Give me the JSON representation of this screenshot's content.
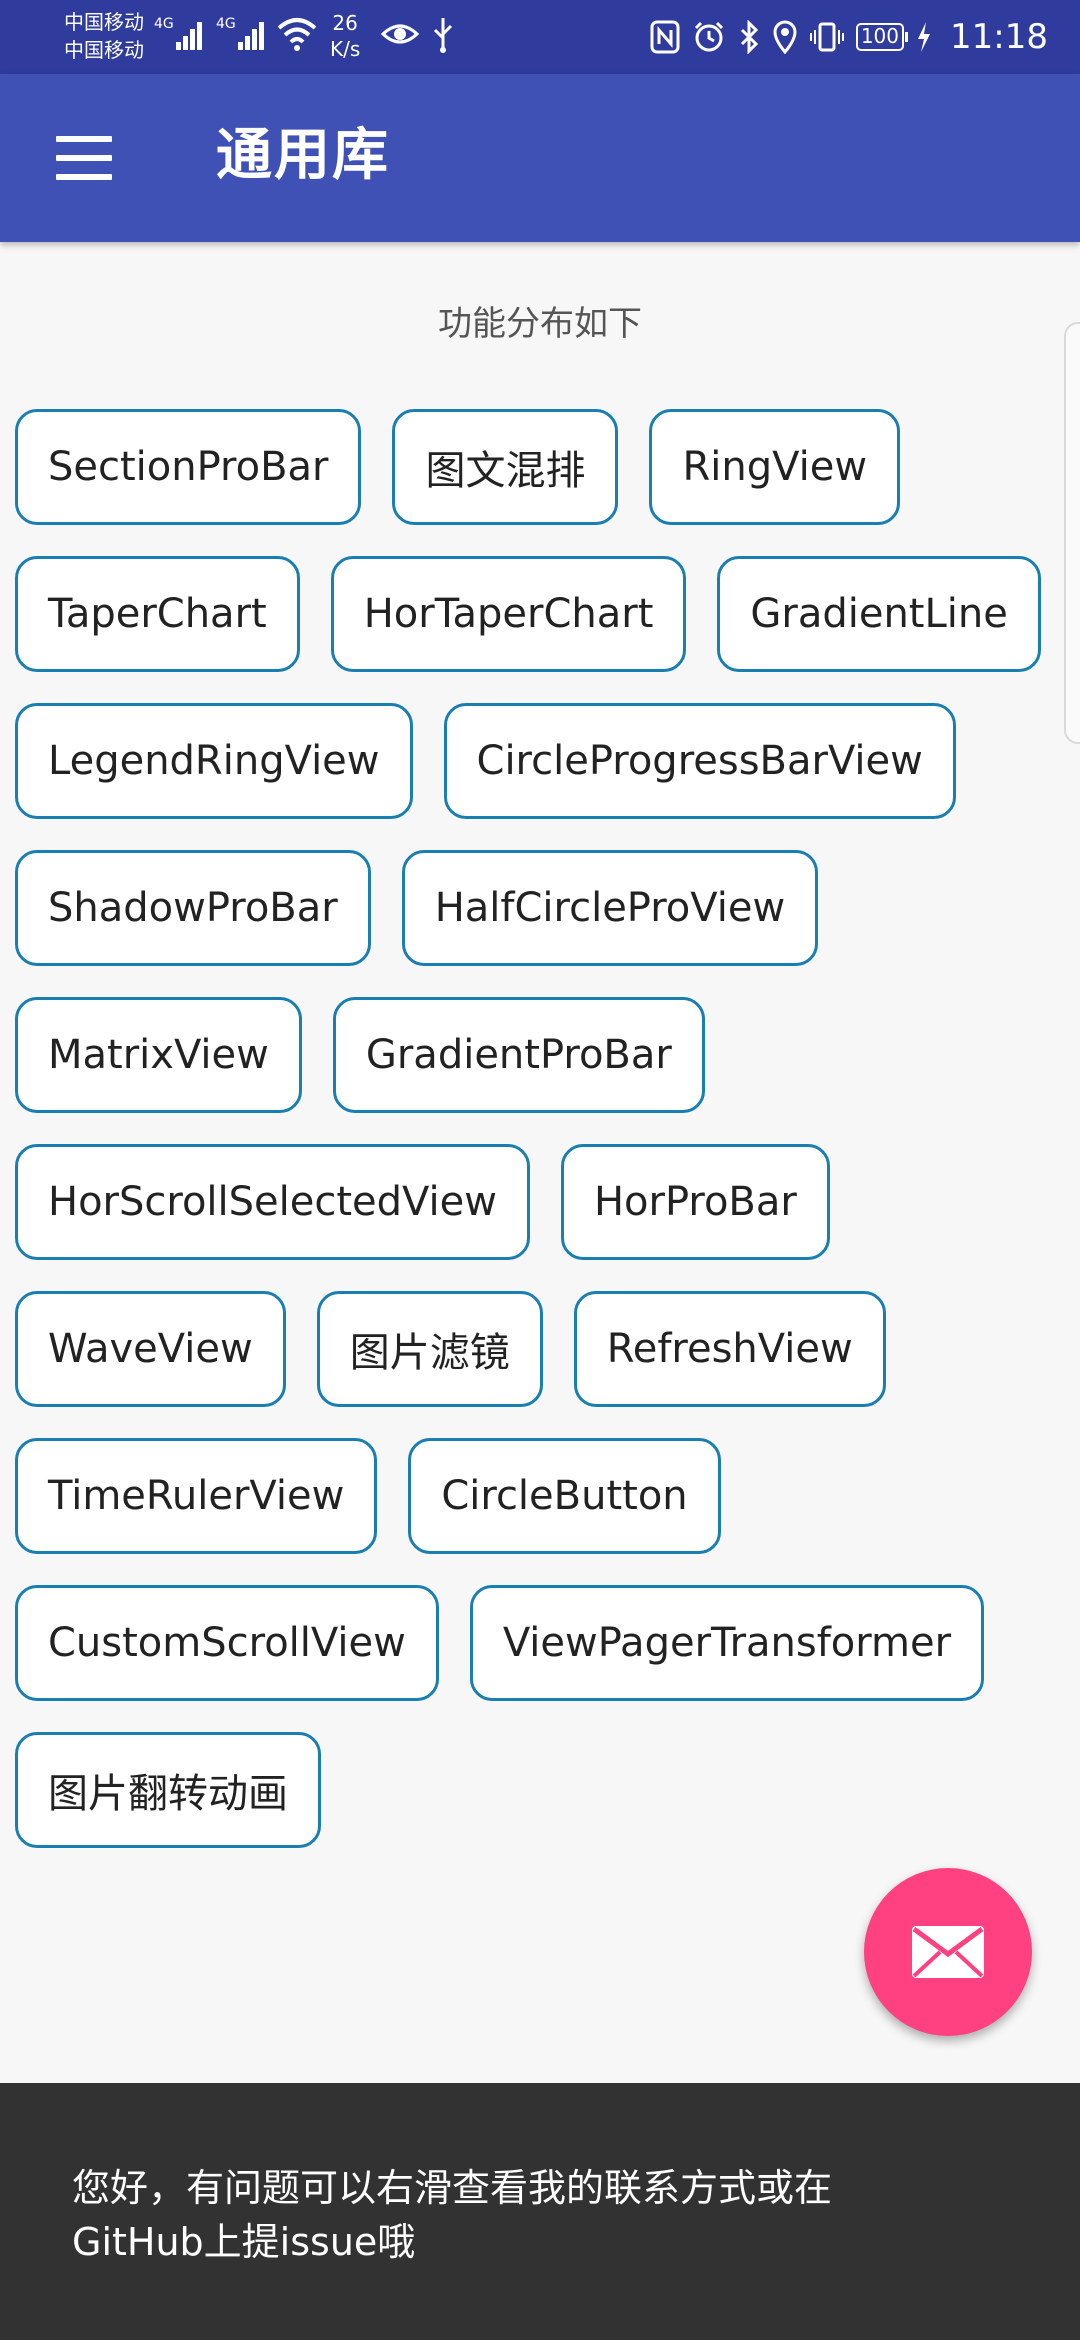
{
  "status_bar": {
    "carrier_1": "中国移动",
    "carrier_2": "中国移动",
    "network_1": "4G",
    "network_2": "4G",
    "speed_value": "26",
    "speed_unit": "K/s",
    "battery": "100",
    "time": "11:18",
    "icons": [
      "signal-icon",
      "wifi-icon",
      "eye-icon",
      "usb-icon",
      "nfc-icon",
      "alarm-icon",
      "bluetooth-icon",
      "location-icon",
      "vibrate-icon",
      "battery-icon",
      "charging-icon"
    ]
  },
  "app_bar": {
    "title": "通用库",
    "menu_icon": "menu-icon"
  },
  "content": {
    "subtitle": "功能分布如下",
    "rows": [
      [
        "SectionProBar",
        "图文混排",
        "RingView"
      ],
      [
        "TaperChart",
        "HorTaperChart",
        "GradientLine"
      ],
      [
        "LegendRingView",
        "CircleProgressBarView"
      ],
      [
        "ShadowProBar",
        "HalfCircleProView"
      ],
      [
        "MatrixView",
        "GradientProBar"
      ],
      [
        "HorScrollSelectedView",
        "HorProBar"
      ],
      [
        "WaveView",
        "图片滤镜",
        "RefreshView"
      ],
      [
        "TimeRulerView",
        "CircleButton"
      ],
      [
        "CustomScrollView",
        "ViewPagerTransformer"
      ],
      [
        "图片翻转动画"
      ]
    ]
  },
  "fab": {
    "icon": "mail-icon",
    "color": "#ff4081"
  },
  "snackbar": {
    "line_1": "您好，有问题可以右滑查看我的联系方式或在",
    "line_2": "GitHub上提issue哦"
  },
  "colors": {
    "status_bar": "#2f3c9e",
    "app_bar": "#3f51b5",
    "chip_border": "#1a7fb0",
    "snackbar": "#323232"
  }
}
